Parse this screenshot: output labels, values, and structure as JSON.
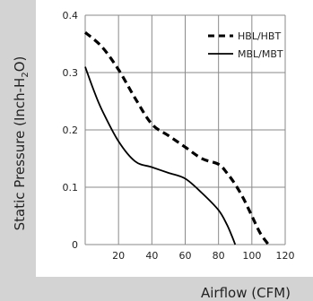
{
  "chart_data": {
    "type": "line",
    "xlabel": "Airflow (CFM)",
    "ylabel_main": "Static Pressure (Inch-H",
    "ylabel_sub": "2",
    "ylabel_tail": "O)",
    "xlim": [
      0,
      120
    ],
    "ylim": [
      0,
      0.4
    ],
    "x_ticks": [
      20,
      40,
      60,
      80,
      100,
      120
    ],
    "y_ticks": [
      0,
      0.1,
      0.2,
      0.3,
      0.4
    ],
    "y_tick_labels": [
      "0",
      "0.1",
      "0.2",
      "0.3",
      "0.4"
    ],
    "grid": true,
    "legend_position": "top-right",
    "colors": {
      "axis_band": "#d3d3d3",
      "grid": "#8a8a8a",
      "line": "#000000"
    },
    "series": [
      {
        "name": "HBL/HBT",
        "style": "dashed",
        "x": [
          0,
          10,
          20,
          30,
          40,
          50,
          60,
          70,
          80,
          85,
          90,
          95,
          100,
          105,
          110
        ],
        "y": [
          0.37,
          0.345,
          0.305,
          0.255,
          0.21,
          0.19,
          0.17,
          0.15,
          0.14,
          0.125,
          0.105,
          0.08,
          0.05,
          0.02,
          0.0
        ]
      },
      {
        "name": "MBL/MBT",
        "style": "solid",
        "x": [
          0,
          5,
          10,
          20,
          30,
          40,
          50,
          60,
          70,
          80,
          85,
          88,
          90
        ],
        "y": [
          0.31,
          0.27,
          0.235,
          0.18,
          0.145,
          0.135,
          0.125,
          0.115,
          0.09,
          0.06,
          0.035,
          0.015,
          0.0
        ]
      }
    ]
  }
}
